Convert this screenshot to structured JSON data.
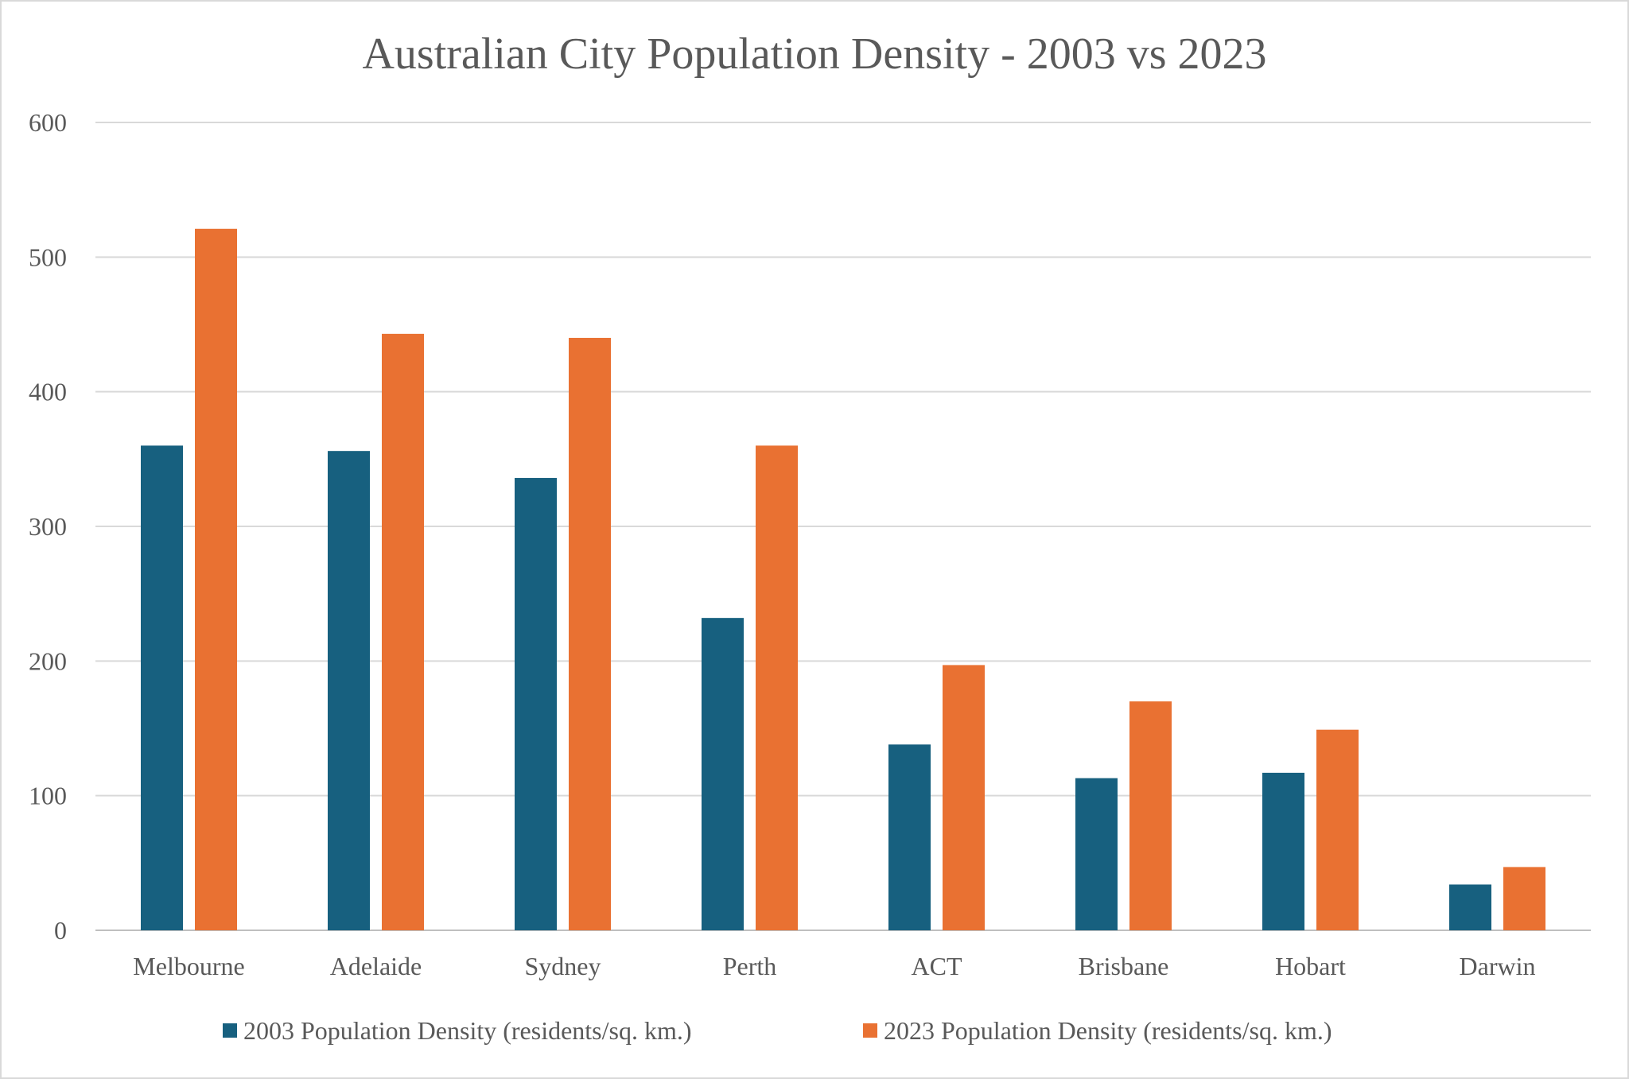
{
  "chart_data": {
    "type": "bar",
    "title": "Australian City Population Density - 2003 vs 2023",
    "xlabel": "",
    "ylabel": "",
    "ylim": [
      0,
      600
    ],
    "yticks": [
      "0",
      "100",
      "200",
      "300",
      "400",
      "500",
      "600"
    ],
    "grid": true,
    "legend_position": "bottom",
    "categories": [
      "Melbourne",
      "Adelaide",
      "Sydney",
      "Perth",
      "ACT",
      "Brisbane",
      "Hobart",
      "Darwin"
    ],
    "series": [
      {
        "name": "2003 Population Density (residents/sq. km.)",
        "color": "#17607f",
        "values": [
          360,
          356,
          336,
          232,
          138,
          113,
          117,
          34
        ]
      },
      {
        "name": "2023 Population Density (residents/sq. km.)",
        "color": "#e97132",
        "values": [
          521,
          443,
          440,
          360,
          197,
          170,
          149,
          47
        ]
      }
    ]
  }
}
